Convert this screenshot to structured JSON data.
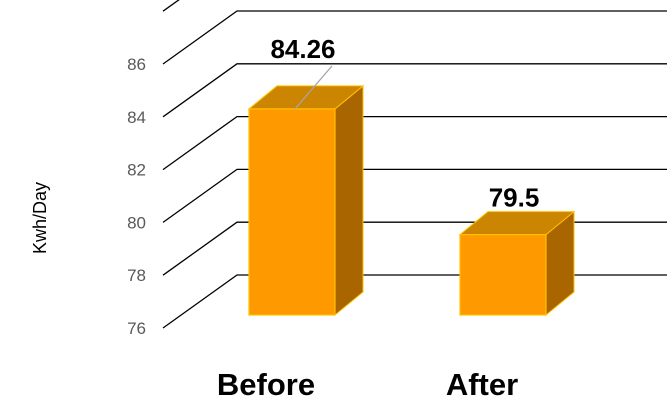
{
  "chart_data": {
    "type": "bar",
    "style": "3d-column",
    "title": "",
    "xlabel": "",
    "ylabel": "Kwh/Day",
    "categories": [
      "Before",
      "After"
    ],
    "values": [
      84.26,
      79.5
    ],
    "data_labels": [
      "84.26",
      "79.5"
    ],
    "yticks": [
      "76",
      "78",
      "80",
      "82",
      "84",
      "86"
    ],
    "ylim": [
      76,
      86
    ],
    "grid": true,
    "legend": "none",
    "colors": {
      "bar_front": "#FF9900",
      "bar_side": "#A86500",
      "bar_top": "#CC8500",
      "bar_edge": "#FFC000",
      "gridline": "#000000",
      "tick_text": "#595959"
    }
  }
}
